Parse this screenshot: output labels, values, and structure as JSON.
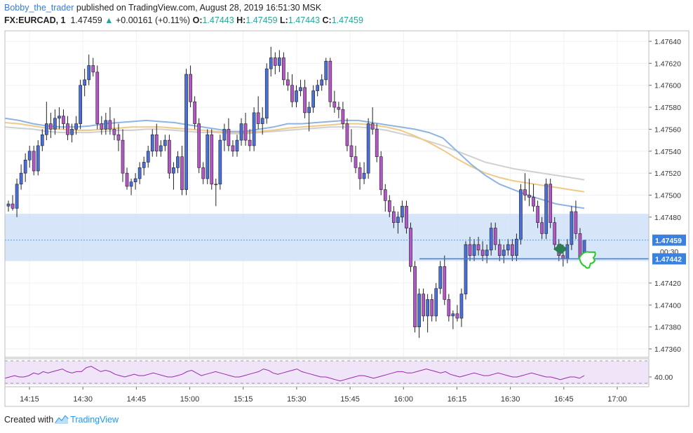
{
  "header": {
    "author": "Bobby_the_trader",
    "published_text": "published on TradingView.com, August 28, 2019 16:51:30 MSK",
    "symbol": "FX:EURCAD, 1",
    "last": "1.47459",
    "change": "+0.00161 (+0.11%)",
    "o_label": "O:",
    "o_value": "1.47443",
    "h_label": "H:",
    "h_value": "1.47459",
    "l_label": "L:",
    "l_value": "1.47443",
    "c_label": "C:",
    "c_value": "1.47459"
  },
  "footer": {
    "created_with": "Created with",
    "brand": "TradingView"
  },
  "colors": {
    "candle_bull": "#4a6fd6",
    "candle_bear": "#b456c8",
    "wick": "#222222",
    "ma_blue": "#8fb4e3",
    "ma_orange": "#f0c987",
    "ma_gray": "#d0d0d0",
    "zone": "#cfe0f7",
    "level_line": "#3b82e0",
    "rsi_line": "#9c27b0",
    "rsi_band": "#f0e4f8",
    "marker_green": "#2e7d55",
    "hand_green": "#22cc22"
  },
  "chart_data": {
    "type": "candlestick",
    "title": "FX:EURCAD, 1",
    "ylim": [
      1.4735,
      1.4765
    ],
    "y_ticks": [
      "1.47640",
      "1.47620",
      "1.47600",
      "1.47580",
      "1.47560",
      "1.47540",
      "1.47520",
      "1.47500",
      "1.47480",
      "1.47420",
      "1.47400",
      "1.47380",
      "1.47360"
    ],
    "x_ticks": [
      "14:15",
      "14:30",
      "14:45",
      "15:00",
      "15:15",
      "15:30",
      "15:45",
      "16:00",
      "16:15",
      "16:30",
      "16:45",
      "17:00"
    ],
    "price_labels": {
      "last_price": "1.47459",
      "countdown": "00:30",
      "level": "1.47442"
    },
    "horizontal_level": 1.47442,
    "zone": [
      1.4744,
      1.47483
    ],
    "rsi": {
      "label": "40.00",
      "values": [
        39,
        40,
        41,
        40,
        40,
        41,
        43,
        42,
        44,
        43,
        44,
        45,
        46,
        44,
        43,
        44,
        44,
        47,
        48,
        46,
        44,
        45,
        44,
        42,
        41,
        40,
        41,
        42,
        41,
        41,
        42,
        43,
        42,
        41,
        40,
        40,
        41,
        42,
        44,
        45,
        43,
        41,
        42,
        43,
        44,
        43,
        42,
        41,
        40,
        40,
        41,
        42,
        43,
        44,
        46,
        45,
        43,
        42,
        43,
        44,
        45,
        46,
        44,
        43,
        42,
        41,
        40,
        40,
        39,
        38,
        37,
        38,
        39,
        40,
        41,
        41,
        40,
        39,
        40,
        41,
        42,
        43,
        44,
        44,
        43,
        43,
        44,
        45,
        46,
        45,
        44,
        43,
        44,
        42,
        41,
        40,
        41,
        42,
        43,
        42,
        41,
        41,
        42,
        43,
        42,
        41,
        40,
        40,
        41,
        42,
        43,
        42,
        41,
        40,
        40,
        39,
        38,
        39,
        40,
        40,
        39,
        41
      ]
    },
    "candles": [
      [
        1.4749,
        1.47495,
        1.47485,
        1.47492
      ],
      [
        1.47492,
        1.475,
        1.47486,
        1.47488
      ],
      [
        1.47488,
        1.47515,
        1.4748,
        1.4751
      ],
      [
        1.4751,
        1.47528,
        1.47505,
        1.4752
      ],
      [
        1.4752,
        1.47538,
        1.47512,
        1.47532
      ],
      [
        1.47532,
        1.47545,
        1.47525,
        1.4754
      ],
      [
        1.4754,
        1.47545,
        1.47518,
        1.47522
      ],
      [
        1.47522,
        1.4755,
        1.47518,
        1.47545
      ],
      [
        1.47545,
        1.4756,
        1.4754,
        1.47555
      ],
      [
        1.47555,
        1.47585,
        1.4755,
        1.47565
      ],
      [
        1.47565,
        1.47575,
        1.47552,
        1.4756
      ],
      [
        1.4756,
        1.47578,
        1.47555,
        1.4757
      ],
      [
        1.4757,
        1.4758,
        1.4756,
        1.47572
      ],
      [
        1.47572,
        1.47578,
        1.4756,
        1.47565
      ],
      [
        1.47565,
        1.47572,
        1.4755,
        1.47555
      ],
      [
        1.47555,
        1.47565,
        1.47548,
        1.4756
      ],
      [
        1.4756,
        1.47572,
        1.47555,
        1.47565
      ],
      [
        1.47565,
        1.47605,
        1.4756,
        1.476
      ],
      [
        1.476,
        1.47615,
        1.4759,
        1.47605
      ],
      [
        1.47605,
        1.47628,
        1.476,
        1.47618
      ],
      [
        1.47618,
        1.47625,
        1.47608,
        1.47612
      ],
      [
        1.47612,
        1.47618,
        1.4756,
        1.47565
      ],
      [
        1.47565,
        1.47572,
        1.47555,
        1.4756
      ],
      [
        1.4756,
        1.47575,
        1.47555,
        1.47568
      ],
      [
        1.47568,
        1.4758,
        1.47555,
        1.4756
      ],
      [
        1.4756,
        1.4757,
        1.4755,
        1.47555
      ],
      [
        1.47555,
        1.47565,
        1.4754,
        1.4755
      ],
      [
        1.4755,
        1.4756,
        1.47512,
        1.4752
      ],
      [
        1.4752,
        1.47525,
        1.47505,
        1.47508
      ],
      [
        1.47508,
        1.47515,
        1.475,
        1.47512
      ],
      [
        1.47512,
        1.4752,
        1.47505,
        1.47515
      ],
      [
        1.47515,
        1.4753,
        1.4751,
        1.47525
      ],
      [
        1.47525,
        1.47535,
        1.47518,
        1.4753
      ],
      [
        1.4753,
        1.47545,
        1.47525,
        1.4754
      ],
      [
        1.4754,
        1.4756,
        1.47535,
        1.47555
      ],
      [
        1.47555,
        1.47565,
        1.47535,
        1.4754
      ],
      [
        1.4754,
        1.4755,
        1.47535,
        1.47545
      ],
      [
        1.47545,
        1.47555,
        1.4754,
        1.4755
      ],
      [
        1.4755,
        1.47555,
        1.47515,
        1.4752
      ],
      [
        1.4752,
        1.4753,
        1.47505,
        1.47525
      ],
      [
        1.47525,
        1.4754,
        1.4752,
        1.47535
      ],
      [
        1.47535,
        1.47545,
        1.475,
        1.47505
      ],
      [
        1.47505,
        1.47615,
        1.475,
        1.4761
      ],
      [
        1.4761,
        1.47618,
        1.4758,
        1.47585
      ],
      [
        1.47585,
        1.4759,
        1.4756,
        1.47565
      ],
      [
        1.47565,
        1.4757,
        1.4752,
        1.47525
      ],
      [
        1.47525,
        1.4753,
        1.4751,
        1.47515
      ],
      [
        1.47515,
        1.4756,
        1.4751,
        1.47555
      ],
      [
        1.47555,
        1.4756,
        1.47505,
        1.4751
      ],
      [
        1.4751,
        1.47515,
        1.4749,
        1.4751
      ],
      [
        1.4751,
        1.47555,
        1.47505,
        1.4755
      ],
      [
        1.4755,
        1.47565,
        1.4754,
        1.4756
      ],
      [
        1.4756,
        1.4757,
        1.4754,
        1.47545
      ],
      [
        1.47545,
        1.4755,
        1.47535,
        1.4754
      ],
      [
        1.4754,
        1.47555,
        1.47535,
        1.4755
      ],
      [
        1.4755,
        1.4757,
        1.47545,
        1.47565
      ],
      [
        1.47565,
        1.47575,
        1.47545,
        1.4755
      ],
      [
        1.4755,
        1.4756,
        1.4754,
        1.47545
      ],
      [
        1.47545,
        1.4758,
        1.4754,
        1.47575
      ],
      [
        1.47575,
        1.4759,
        1.4756,
        1.47565
      ],
      [
        1.47565,
        1.4758,
        1.47555,
        1.4757
      ],
      [
        1.4757,
        1.4762,
        1.47565,
        1.47615
      ],
      [
        1.47615,
        1.47635,
        1.47608,
        1.47625
      ],
      [
        1.47625,
        1.4763,
        1.4761,
        1.47618
      ],
      [
        1.47618,
        1.47632,
        1.47612,
        1.47625
      ],
      [
        1.47625,
        1.4763,
        1.476,
        1.47605
      ],
      [
        1.47605,
        1.47612,
        1.47595,
        1.476
      ],
      [
        1.476,
        1.4761,
        1.4758,
        1.47585
      ],
      [
        1.47585,
        1.476,
        1.4758,
        1.47595
      ],
      [
        1.47595,
        1.47605,
        1.4759,
        1.47598
      ],
      [
        1.47598,
        1.47605,
        1.4757,
        1.47575
      ],
      [
        1.47575,
        1.47585,
        1.47558,
        1.4758
      ],
      [
        1.4758,
        1.476,
        1.47575,
        1.47595
      ],
      [
        1.47595,
        1.47605,
        1.4759,
        1.476
      ],
      [
        1.476,
        1.4761,
        1.47595,
        1.47605
      ],
      [
        1.47605,
        1.47625,
        1.476,
        1.47622
      ],
      [
        1.47622,
        1.47625,
        1.4758,
        1.47585
      ],
      [
        1.47585,
        1.47595,
        1.47575,
        1.4758
      ],
      [
        1.4758,
        1.47585,
        1.4757,
        1.47578
      ],
      [
        1.47578,
        1.47585,
        1.4756,
        1.47565
      ],
      [
        1.47565,
        1.4757,
        1.4754,
        1.47545
      ],
      [
        1.47545,
        1.4756,
        1.4753,
        1.47535
      ],
      [
        1.47535,
        1.47545,
        1.4752,
        1.47525
      ],
      [
        1.47525,
        1.4753,
        1.47505,
        1.47515
      ],
      [
        1.47515,
        1.4753,
        1.4751,
        1.4752
      ],
      [
        1.4752,
        1.4757,
        1.47515,
        1.47565
      ],
      [
        1.47565,
        1.4758,
        1.47555,
        1.4756
      ],
      [
        1.4756,
        1.47565,
        1.4753,
        1.47535
      ],
      [
        1.47535,
        1.4754,
        1.475,
        1.47505
      ],
      [
        1.47505,
        1.4751,
        1.47485,
        1.47495
      ],
      [
        1.47495,
        1.475,
        1.4748,
        1.47485
      ],
      [
        1.47485,
        1.4749,
        1.4747,
        1.47475
      ],
      [
        1.47475,
        1.47485,
        1.47465,
        1.4748
      ],
      [
        1.4748,
        1.47495,
        1.47475,
        1.4749
      ],
      [
        1.4749,
        1.47495,
        1.47465,
        1.4747
      ],
      [
        1.4747,
        1.47475,
        1.4743,
        1.47435
      ],
      [
        1.47435,
        1.4744,
        1.47375,
        1.4738
      ],
      [
        1.4738,
        1.47415,
        1.4737,
        1.4741
      ],
      [
        1.4741,
        1.47415,
        1.47385,
        1.4739
      ],
      [
        1.4739,
        1.4741,
        1.47375,
        1.47405
      ],
      [
        1.47405,
        1.4741,
        1.47385,
        1.4739
      ],
      [
        1.4739,
        1.4742,
        1.47385,
        1.47415
      ],
      [
        1.47415,
        1.4744,
        1.4741,
        1.47435
      ],
      [
        1.47435,
        1.47445,
        1.474,
        1.47405
      ],
      [
        1.47405,
        1.4741,
        1.47385,
        1.4739
      ],
      [
        1.4739,
        1.47395,
        1.47378,
        1.47392
      ],
      [
        1.47392,
        1.474,
        1.47385,
        1.47388
      ],
      [
        1.47388,
        1.47415,
        1.4738,
        1.4741
      ],
      [
        1.4741,
        1.47458,
        1.47405,
        1.47455
      ],
      [
        1.47455,
        1.47462,
        1.4744,
        1.47445
      ],
      [
        1.47445,
        1.4746,
        1.4744,
        1.47455
      ],
      [
        1.47455,
        1.47462,
        1.47445,
        1.4745
      ],
      [
        1.4745,
        1.47458,
        1.4744,
        1.47445
      ],
      [
        1.47445,
        1.47455,
        1.47438,
        1.4745
      ],
      [
        1.4745,
        1.47475,
        1.47445,
        1.4747
      ],
      [
        1.4747,
        1.47475,
        1.4745,
        1.47455
      ],
      [
        1.47455,
        1.4746,
        1.4744,
        1.47445
      ],
      [
        1.47445,
        1.47455,
        1.47438,
        1.4745
      ],
      [
        1.4745,
        1.4746,
        1.47445,
        1.47455
      ],
      [
        1.47455,
        1.4746,
        1.4744,
        1.47445
      ],
      [
        1.47445,
        1.47465,
        1.4744,
        1.4746
      ],
      [
        1.4746,
        1.4751,
        1.47455,
        1.47505
      ],
      [
        1.47505,
        1.4752,
        1.47495,
        1.475
      ],
      [
        1.475,
        1.47515,
        1.4749,
        1.47498
      ],
      [
        1.47498,
        1.4751,
        1.47485,
        1.4749
      ],
      [
        1.4749,
        1.47495,
        1.4747,
        1.47475
      ],
      [
        1.47475,
        1.4748,
        1.4746,
        1.47465
      ],
      [
        1.47465,
        1.47515,
        1.4746,
        1.4751
      ],
      [
        1.4751,
        1.47515,
        1.4747,
        1.47475
      ],
      [
        1.47475,
        1.4748,
        1.4745,
        1.47455
      ],
      [
        1.47455,
        1.4746,
        1.4744,
        1.47445
      ],
      [
        1.47445,
        1.47455,
        1.47435,
        1.47442
      ],
      [
        1.47442,
        1.4746,
        1.47438,
        1.47455
      ],
      [
        1.47455,
        1.4749,
        1.4745,
        1.47485
      ],
      [
        1.47485,
        1.47495,
        1.4746,
        1.47465
      ],
      [
        1.47465,
        1.4747,
        1.4744,
        1.47443
      ],
      [
        1.47443,
        1.47459,
        1.47443,
        1.47459
      ]
    ],
    "ma_blue": [
      1.4757,
      1.47568,
      1.47565,
      1.47563,
      1.47562,
      1.47562,
      1.47563,
      1.47565,
      1.47566,
      1.47567,
      1.47568,
      1.47567,
      1.47566,
      1.47564,
      1.47562,
      1.4756,
      1.47558,
      1.47558,
      1.4756,
      1.47562,
      1.47565,
      1.47565,
      1.47566,
      1.47567,
      1.47568,
      1.47568,
      1.47566,
      1.47564,
      1.47562,
      1.4756,
      1.47557,
      1.47552,
      1.4754,
      1.47528,
      1.47518,
      1.4751,
      1.47505,
      1.475,
      1.47496,
      1.47492,
      1.4749,
      1.47488
    ],
    "ma_orange": [
      1.47566,
      1.47565,
      1.47563,
      1.47561,
      1.4756,
      1.47559,
      1.47559,
      1.4756,
      1.47561,
      1.47562,
      1.47562,
      1.47562,
      1.47561,
      1.4756,
      1.47559,
      1.47558,
      1.47557,
      1.47557,
      1.47558,
      1.47559,
      1.47561,
      1.47562,
      1.47563,
      1.47564,
      1.47565,
      1.47565,
      1.47564,
      1.47562,
      1.47559,
      1.47554,
      1.47548,
      1.47541,
      1.47533,
      1.47526,
      1.4752,
      1.47516,
      1.47513,
      1.47511,
      1.47509,
      1.47507,
      1.47505,
      1.47503
    ],
    "ma_gray": [
      1.47562,
      1.47561,
      1.4756,
      1.47558,
      1.47557,
      1.47557,
      1.47557,
      1.47558,
      1.47559,
      1.47559,
      1.4756,
      1.4756,
      1.47559,
      1.47558,
      1.47557,
      1.47557,
      1.47556,
      1.47556,
      1.47557,
      1.47558,
      1.47559,
      1.4756,
      1.47561,
      1.47562,
      1.47562,
      1.47562,
      1.47561,
      1.47559,
      1.47556,
      1.47553,
      1.47549,
      1.47545,
      1.4754,
      1.47535,
      1.4753,
      1.47527,
      1.47524,
      1.47522,
      1.4752,
      1.47518,
      1.47516,
      1.47514
    ]
  }
}
